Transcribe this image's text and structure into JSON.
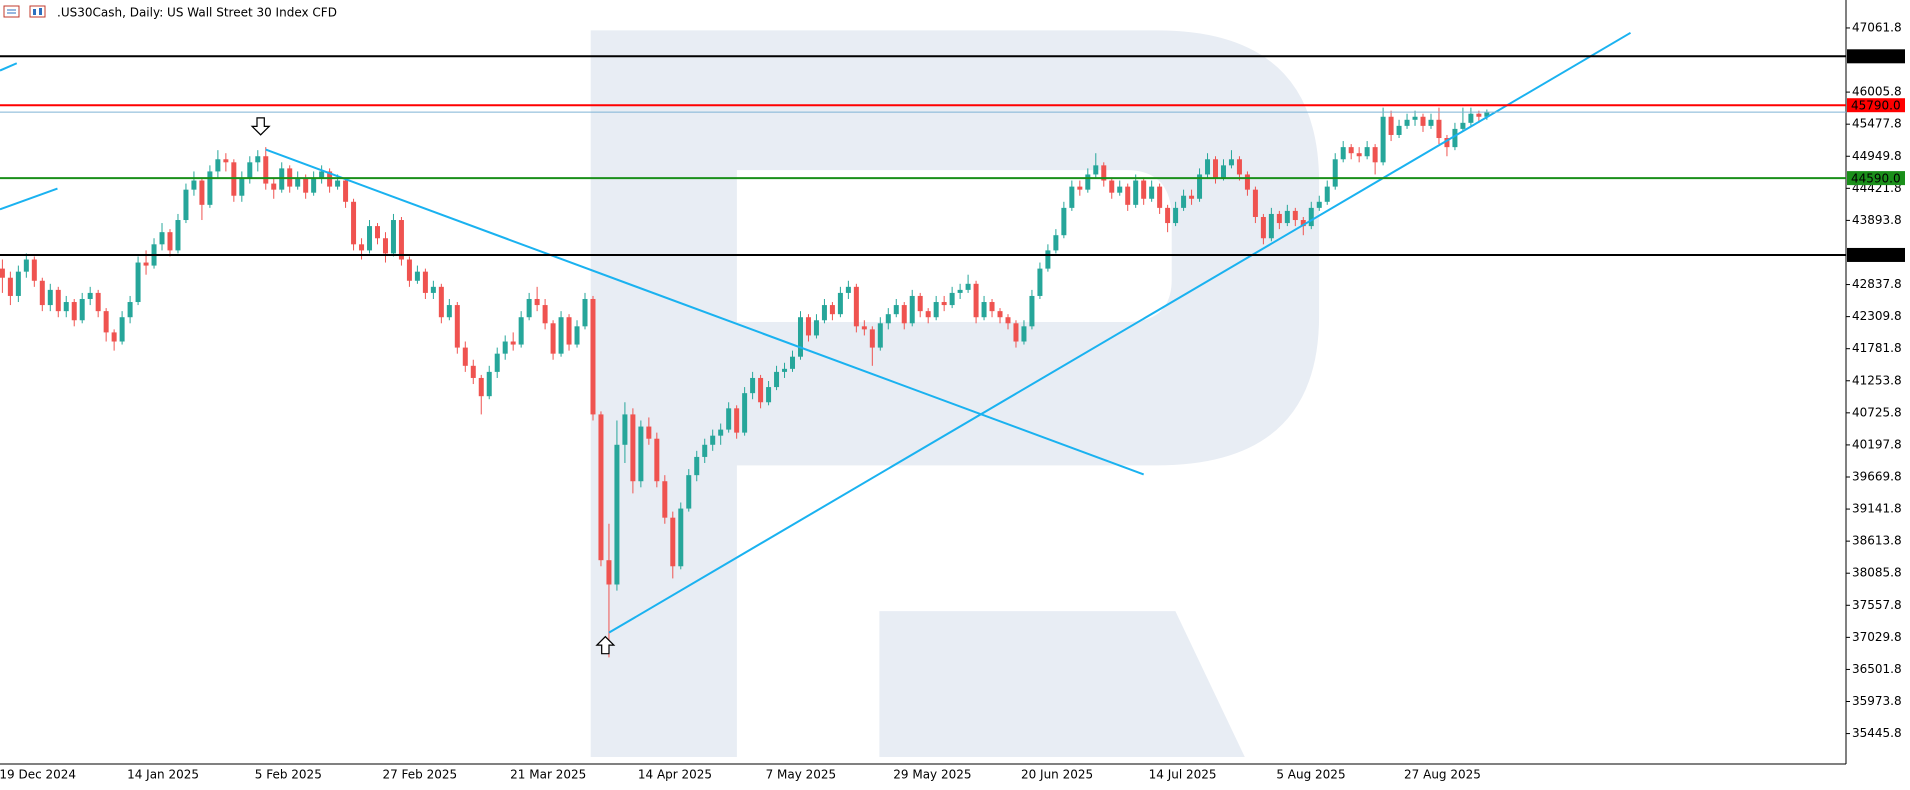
{
  "chart_data": {
    "type": "candlestick",
    "title": ".US30Cash, Daily:  US Wall Street 30 Index CFD",
    "up_color": "#26a69a",
    "down_color": "#ef5350",
    "line_color": "#1ab2f0",
    "grid": false,
    "ylim": [
      34945,
      47522
    ],
    "xlim": [
      -0.3,
      231
    ],
    "yticks": [
      47061.8,
      46005.8,
      45477.8,
      44949.8,
      44421.8,
      43893.8,
      42837.8,
      42309.8,
      41781.8,
      41253.8,
      40725.8,
      40197.8,
      39669.8,
      39141.8,
      38613.8,
      38085.8,
      37557.8,
      37029.8,
      36501.8,
      35973.8,
      35445.8
    ],
    "levels": [
      {
        "value": 46595,
        "label": "46595.0",
        "color": "#000000"
      },
      {
        "value": 45676,
        "color": "#7fb3d5"
      },
      {
        "value": 45790,
        "label": "45790.0",
        "color": "#ff0000"
      },
      {
        "value": 44590,
        "label": "44590.0",
        "color": "#1a8f1a"
      },
      {
        "value": 43325,
        "label": "43325.0",
        "color": "#000000"
      }
    ],
    "trendlines": [
      {
        "x": [
          33,
          143
        ],
        "y": [
          45059,
          39711
        ]
      },
      {
        "x": [
          76,
          204
        ],
        "y": [
          37107,
          46982
        ]
      },
      {
        "x": [
          -0.3,
          6.9
        ],
        "y": [
          44077,
          44417
        ]
      },
      {
        "x": [
          -0.3,
          1.8
        ],
        "y": [
          46361,
          46481
        ]
      }
    ],
    "categories": [
      "19 Dec 2024",
      null,
      null,
      null,
      null,
      null,
      null,
      null,
      null,
      null,
      null,
      null,
      null,
      null,
      null,
      null,
      "14 Jan 2025",
      null,
      null,
      null,
      null,
      null,
      null,
      null,
      null,
      null,
      null,
      null,
      null,
      null,
      null,
      null,
      "5 Feb 2025",
      null,
      null,
      null,
      null,
      null,
      null,
      null,
      null,
      null,
      null,
      null,
      null,
      null,
      null,
      null,
      "27 Feb 2025",
      null,
      null,
      null,
      null,
      null,
      null,
      null,
      null,
      null,
      null,
      null,
      null,
      null,
      null,
      null,
      "21 Mar 2025",
      null,
      null,
      null,
      null,
      null,
      null,
      null,
      null,
      null,
      null,
      null,
      null,
      null,
      null,
      null,
      "14 Apr 2025",
      null,
      null,
      null,
      null,
      null,
      null,
      null,
      null,
      null,
      null,
      null,
      null,
      null,
      null,
      null,
      "7 May 2025",
      null,
      null,
      null,
      null,
      null,
      null,
      null,
      null,
      null,
      null,
      null,
      null,
      null,
      null,
      null,
      "29 May 2025",
      null,
      null,
      null,
      null,
      null,
      null,
      null,
      null,
      null,
      null,
      null,
      null,
      null,
      null,
      null,
      "20 Jun 2025",
      null,
      null,
      null,
      null,
      null,
      null,
      null,
      null,
      null,
      null,
      null,
      null,
      null,
      null,
      null,
      "14 Jul 2025",
      null,
      null,
      null,
      null,
      null,
      null,
      null,
      null,
      null,
      null,
      null,
      null,
      null,
      null,
      null,
      "5 Aug 2025",
      null,
      null,
      null,
      null,
      null,
      null,
      null,
      null,
      null,
      null,
      null,
      null,
      null,
      null,
      null,
      "27 Aug 2025",
      null,
      null,
      null,
      null,
      null,
      null,
      null,
      null,
      null,
      null
    ],
    "ohlc": [
      [
        43100,
        43250,
        42700,
        42950
      ],
      [
        42950,
        43050,
        42500,
        42650
      ],
      [
        42650,
        43150,
        42550,
        43050
      ],
      [
        43050,
        43350,
        42950,
        43250
      ],
      [
        43250,
        43300,
        42800,
        42900
      ],
      [
        42900,
        42950,
        42400,
        42500
      ],
      [
        42500,
        42850,
        42400,
        42750
      ],
      [
        42750,
        42800,
        42300,
        42400
      ],
      [
        42400,
        42650,
        42300,
        42550
      ],
      [
        42550,
        42600,
        42150,
        42250
      ],
      [
        42250,
        42700,
        42200,
        42600
      ],
      [
        42600,
        42800,
        42500,
        42700
      ],
      [
        42700,
        42750,
        42300,
        42400
      ],
      [
        42400,
        42450,
        41900,
        42050
      ],
      [
        42050,
        42100,
        41750,
        41900
      ],
      [
        41900,
        42400,
        41850,
        42300
      ],
      [
        42300,
        42650,
        42200,
        42550
      ],
      [
        42550,
        43300,
        42500,
        43200
      ],
      [
        43200,
        43400,
        43000,
        43150
      ],
      [
        43150,
        43600,
        43100,
        43500
      ],
      [
        43500,
        43850,
        43400,
        43700
      ],
      [
        43700,
        43750,
        43300,
        43400
      ],
      [
        43400,
        44000,
        43350,
        43900
      ],
      [
        43900,
        44500,
        43850,
        44400
      ],
      [
        44400,
        44700,
        44300,
        44550
      ],
      [
        44550,
        44600,
        43900,
        44150
      ],
      [
        44150,
        44800,
        44100,
        44700
      ],
      [
        44700,
        45050,
        44600,
        44900
      ],
      [
        44900,
        45000,
        44700,
        44850
      ],
      [
        44850,
        44900,
        44200,
        44300
      ],
      [
        44300,
        44700,
        44200,
        44600
      ],
      [
        44600,
        44950,
        44500,
        44850
      ],
      [
        44850,
        45050,
        44700,
        44950
      ],
      [
        44950,
        45100,
        44400,
        44500
      ],
      [
        44500,
        44600,
        44250,
        44400
      ],
      [
        44400,
        44850,
        44350,
        44750
      ],
      [
        44750,
        44800,
        44350,
        44450
      ],
      [
        44450,
        44700,
        44400,
        44600
      ],
      [
        44600,
        44650,
        44250,
        44350
      ],
      [
        44350,
        44700,
        44300,
        44600
      ],
      [
        44600,
        44800,
        44500,
        44700
      ],
      [
        44700,
        44750,
        44350,
        44450
      ],
      [
        44450,
        44650,
        44400,
        44550
      ],
      [
        44550,
        44600,
        44100,
        44200
      ],
      [
        44200,
        44250,
        43400,
        43500
      ],
      [
        43500,
        43600,
        43250,
        43400
      ],
      [
        43400,
        43900,
        43350,
        43800
      ],
      [
        43800,
        43850,
        43500,
        43600
      ],
      [
        43600,
        43700,
        43200,
        43350
      ],
      [
        43350,
        44000,
        43300,
        43900
      ],
      [
        43900,
        43950,
        43150,
        43250
      ],
      [
        43250,
        43300,
        42800,
        42900
      ],
      [
        42900,
        43150,
        42850,
        43050
      ],
      [
        43050,
        43100,
        42600,
        42700
      ],
      [
        42700,
        42900,
        42600,
        42800
      ],
      [
        42800,
        42850,
        42200,
        42300
      ],
      [
        42300,
        42600,
        42250,
        42500
      ],
      [
        42500,
        42550,
        41700,
        41800
      ],
      [
        41800,
        41900,
        41400,
        41500
      ],
      [
        41500,
        41600,
        41200,
        41300
      ],
      [
        41300,
        41350,
        40700,
        41000
      ],
      [
        41000,
        41500,
        40950,
        41400
      ],
      [
        41400,
        41800,
        41300,
        41700
      ],
      [
        41700,
        42000,
        41600,
        41900
      ],
      [
        41900,
        42050,
        41750,
        41850
      ],
      [
        41850,
        42400,
        41800,
        42300
      ],
      [
        42300,
        42700,
        42250,
        42600
      ],
      [
        42600,
        42800,
        42400,
        42500
      ],
      [
        42500,
        42600,
        42100,
        42200
      ],
      [
        42200,
        42250,
        41600,
        41700
      ],
      [
        41700,
        42400,
        41650,
        42300
      ],
      [
        42300,
        42350,
        41750,
        41850
      ],
      [
        41850,
        42250,
        41800,
        42150
      ],
      [
        42150,
        42700,
        42100,
        42600
      ],
      [
        42600,
        42650,
        40600,
        40700
      ],
      [
        40700,
        40750,
        38200,
        38300
      ],
      [
        38300,
        38900,
        36700,
        37900
      ],
      [
        37900,
        40600,
        37800,
        40200
      ],
      [
        40200,
        40900,
        39900,
        40700
      ],
      [
        40700,
        40800,
        39400,
        39600
      ],
      [
        39600,
        40600,
        39500,
        40500
      ],
      [
        40500,
        40650,
        40200,
        40300
      ],
      [
        40300,
        40400,
        39500,
        39600
      ],
      [
        39600,
        39700,
        38900,
        39000
      ],
      [
        39000,
        39100,
        38000,
        38200
      ],
      [
        38200,
        39250,
        38150,
        39150
      ],
      [
        39150,
        39800,
        39100,
        39700
      ],
      [
        39700,
        40100,
        39600,
        40000
      ],
      [
        40000,
        40300,
        39900,
        40200
      ],
      [
        40200,
        40450,
        40100,
        40350
      ],
      [
        40350,
        40550,
        40200,
        40450
      ],
      [
        40450,
        40900,
        40400,
        40800
      ],
      [
        40800,
        40850,
        40300,
        40400
      ],
      [
        40400,
        41150,
        40350,
        41050
      ],
      [
        41050,
        41400,
        40950,
        41300
      ],
      [
        41300,
        41350,
        40800,
        40900
      ],
      [
        40900,
        41250,
        40850,
        41150
      ],
      [
        41150,
        41500,
        41100,
        41400
      ],
      [
        41400,
        41550,
        41300,
        41450
      ],
      [
        41450,
        41750,
        41400,
        41650
      ],
      [
        41650,
        42400,
        41600,
        42300
      ],
      [
        42300,
        42350,
        41900,
        42000
      ],
      [
        42000,
        42350,
        41950,
        42250
      ],
      [
        42250,
        42600,
        42200,
        42500
      ],
      [
        42500,
        42550,
        42250,
        42350
      ],
      [
        42350,
        42800,
        42300,
        42700
      ],
      [
        42700,
        42900,
        42600,
        42800
      ],
      [
        42800,
        42850,
        42050,
        42150
      ],
      [
        42150,
        42250,
        42000,
        42100
      ],
      [
        42100,
        42150,
        41500,
        41800
      ],
      [
        41800,
        42300,
        41750,
        42200
      ],
      [
        42200,
        42450,
        42100,
        42350
      ],
      [
        42350,
        42600,
        42300,
        42500
      ],
      [
        42500,
        42550,
        42100,
        42200
      ],
      [
        42200,
        42750,
        42150,
        42650
      ],
      [
        42650,
        42700,
        42300,
        42400
      ],
      [
        42400,
        42450,
        42200,
        42300
      ],
      [
        42300,
        42650,
        42250,
        42550
      ],
      [
        42550,
        42650,
        42400,
        42500
      ],
      [
        42500,
        42800,
        42450,
        42700
      ],
      [
        42700,
        42850,
        42600,
        42750
      ],
      [
        42750,
        43000,
        42700,
        42850
      ],
      [
        42850,
        42900,
        42200,
        42300
      ],
      [
        42300,
        42650,
        42250,
        42550
      ],
      [
        42550,
        42600,
        42300,
        42400
      ],
      [
        42400,
        42450,
        42200,
        42300
      ],
      [
        42300,
        42350,
        42100,
        42200
      ],
      [
        42200,
        42250,
        41800,
        41900
      ],
      [
        41900,
        42250,
        41850,
        42150
      ],
      [
        42150,
        42750,
        42100,
        42650
      ],
      [
        42650,
        43200,
        42600,
        43100
      ],
      [
        43100,
        43500,
        43050,
        43400
      ],
      [
        43400,
        43750,
        43350,
        43650
      ],
      [
        43650,
        44200,
        43600,
        44100
      ],
      [
        44100,
        44550,
        44050,
        44450
      ],
      [
        44450,
        44550,
        44300,
        44400
      ],
      [
        44400,
        44750,
        44350,
        44650
      ],
      [
        44650,
        45000,
        44600,
        44800
      ],
      [
        44800,
        44850,
        44450,
        44550
      ],
      [
        44550,
        44600,
        44250,
        44350
      ],
      [
        44350,
        44550,
        44300,
        44450
      ],
      [
        44450,
        44500,
        44050,
        44150
      ],
      [
        44150,
        44650,
        44100,
        44550
      ],
      [
        44550,
        44600,
        44150,
        44250
      ],
      [
        44250,
        44550,
        44200,
        44450
      ],
      [
        44450,
        44500,
        44000,
        44100
      ],
      [
        44100,
        44150,
        43700,
        43850
      ],
      [
        43850,
        44200,
        43800,
        44100
      ],
      [
        44100,
        44400,
        44050,
        44300
      ],
      [
        44300,
        44400,
        44150,
        44250
      ],
      [
        44250,
        44750,
        44200,
        44650
      ],
      [
        44650,
        45000,
        44600,
        44900
      ],
      [
        44900,
        44950,
        44500,
        44600
      ],
      [
        44600,
        44900,
        44550,
        44800
      ],
      [
        44800,
        45050,
        44750,
        44900
      ],
      [
        44900,
        44950,
        44550,
        44650
      ],
      [
        44650,
        44700,
        44300,
        44400
      ],
      [
        44400,
        44450,
        43850,
        43950
      ],
      [
        43950,
        44000,
        43500,
        43600
      ],
      [
        43600,
        44100,
        43550,
        44000
      ],
      [
        44000,
        44050,
        43750,
        43850
      ],
      [
        43850,
        44150,
        43800,
        44050
      ],
      [
        44050,
        44100,
        43800,
        43900
      ],
      [
        43900,
        43950,
        43650,
        43800
      ],
      [
        43800,
        44200,
        43750,
        44100
      ],
      [
        44100,
        44300,
        44050,
        44200
      ],
      [
        44200,
        44550,
        44150,
        44450
      ],
      [
        44450,
        45000,
        44400,
        44900
      ],
      [
        44900,
        45200,
        44850,
        45100
      ],
      [
        45100,
        45150,
        44900,
        45000
      ],
      [
        45000,
        45100,
        44850,
        44950
      ],
      [
        44950,
        45200,
        44900,
        45100
      ],
      [
        45100,
        45150,
        44650,
        44850
      ],
      [
        44850,
        45750,
        44800,
        45600
      ],
      [
        45600,
        45700,
        45200,
        45300
      ],
      [
        45300,
        45550,
        45250,
        45450
      ],
      [
        45450,
        45650,
        45400,
        45550
      ],
      [
        45550,
        45700,
        45450,
        45600
      ],
      [
        45600,
        45650,
        45350,
        45450
      ],
      [
        45450,
        45650,
        45400,
        45550
      ],
      [
        45550,
        45750,
        45150,
        45250
      ],
      [
        45250,
        45300,
        44950,
        45100
      ],
      [
        45100,
        45500,
        45050,
        45400
      ],
      [
        45400,
        45750,
        45350,
        45500
      ],
      [
        45500,
        45750,
        45450,
        45650
      ],
      [
        45650,
        45700,
        45500,
        45600
      ],
      [
        45600,
        45720,
        45550,
        45680
      ]
    ]
  }
}
